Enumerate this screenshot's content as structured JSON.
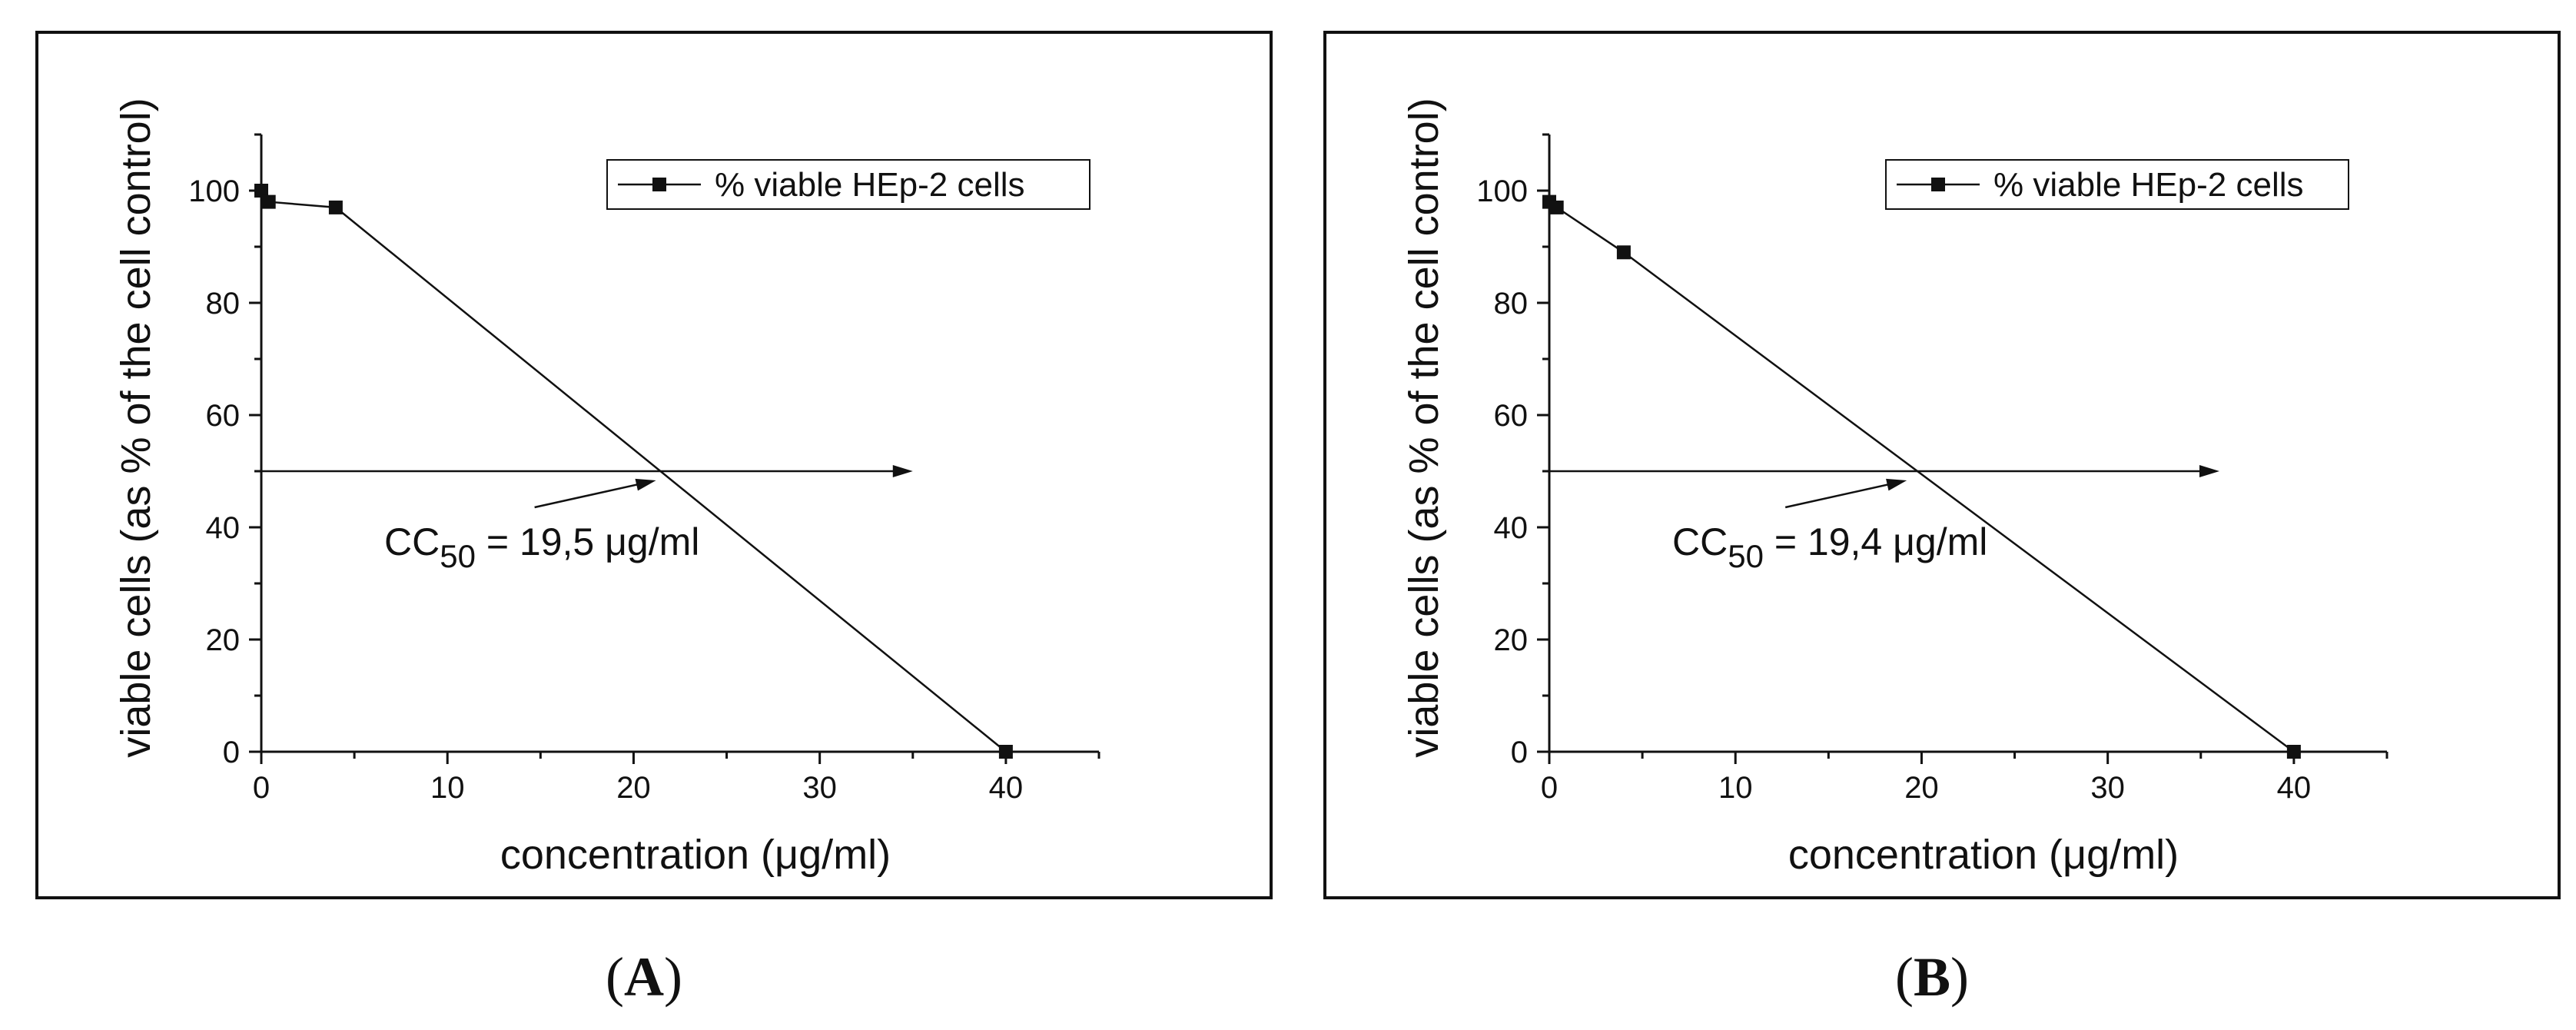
{
  "chart_data": [
    {
      "type": "line",
      "panel_label": "A",
      "xlabel": "concentration (μg/ml)",
      "ylabel": "viable cells (as % of the cell control)",
      "xlim": [
        0,
        45
      ],
      "ylim": [
        0,
        110
      ],
      "x_ticks": [
        0,
        10,
        20,
        30,
        40
      ],
      "y_ticks": [
        0,
        20,
        40,
        60,
        80,
        100
      ],
      "grid": false,
      "legend_position": "top-right",
      "series": [
        {
          "name": "% viable HEp-2 cells",
          "x": [
            0,
            0.4,
            4,
            40
          ],
          "y": [
            100,
            98,
            97,
            0
          ]
        }
      ],
      "reference_line": {
        "y": 50,
        "x_start": 0,
        "x_end": 35
      },
      "annotation": {
        "prefix": "CC",
        "subscript": "50",
        "suffix": " = 19,5 μg/ml",
        "target_x": 21.7,
        "target_y": 50
      }
    },
    {
      "type": "line",
      "panel_label": "B",
      "xlabel": "concentration (μg/ml)",
      "ylabel": "viable cells (as % of the cell control)",
      "xlim": [
        0,
        45
      ],
      "ylim": [
        0,
        110
      ],
      "x_ticks": [
        0,
        10,
        20,
        30,
        40
      ],
      "y_ticks": [
        0,
        20,
        40,
        60,
        80,
        100
      ],
      "grid": false,
      "legend_position": "top-right",
      "series": [
        {
          "name": "% viable HEp-2 cells",
          "x": [
            0,
            0.4,
            4,
            40
          ],
          "y": [
            98,
            97,
            89,
            0
          ]
        }
      ],
      "reference_line": {
        "y": 50,
        "x_start": 0,
        "x_end": 36
      },
      "annotation": {
        "prefix": "CC",
        "subscript": "50",
        "suffix": " = 19,4 μg/ml",
        "target_x": 19.7,
        "target_y": 50
      }
    }
  ],
  "colors": {
    "line": "#111111",
    "frame": "#111111",
    "background": "#ffffff"
  }
}
